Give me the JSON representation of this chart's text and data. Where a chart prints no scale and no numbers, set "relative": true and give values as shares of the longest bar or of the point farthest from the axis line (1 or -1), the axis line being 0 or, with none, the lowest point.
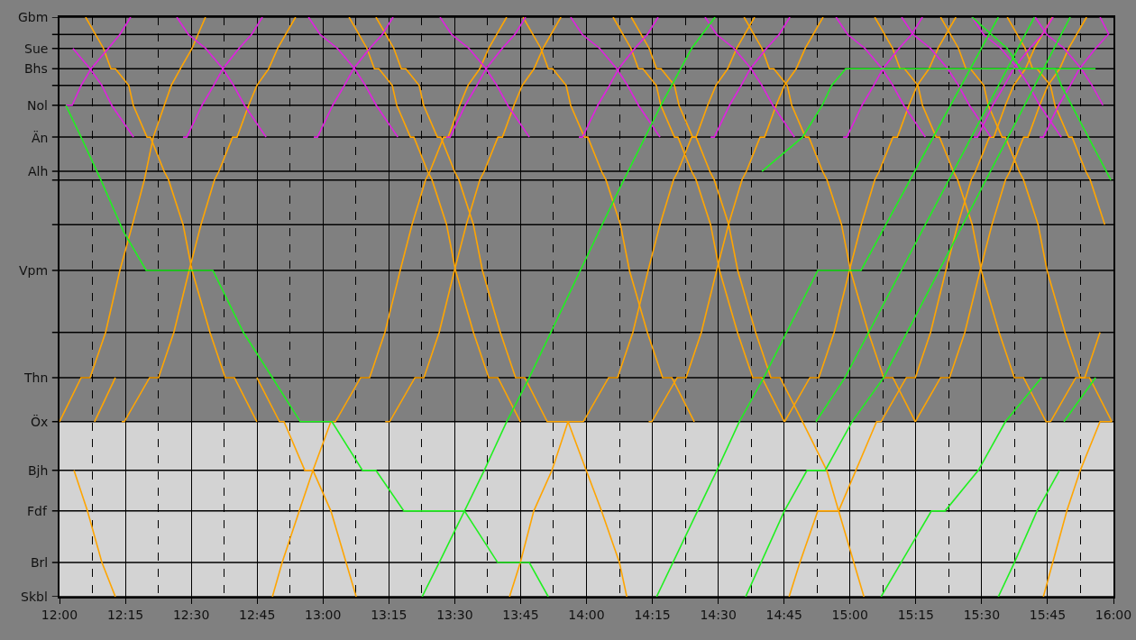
{
  "chart_data": {
    "type": "line",
    "relative": true,
    "xlim": [
      12,
      16
    ],
    "xticks": [
      {
        "value": 12,
        "label": "12:00"
      },
      {
        "value": 12.25,
        "label": "12:15"
      },
      {
        "value": 12.5,
        "label": "12:30"
      },
      {
        "value": 12.75,
        "label": "12:45"
      },
      {
        "value": 13,
        "label": "13:00"
      },
      {
        "value": 13.25,
        "label": "13:15"
      },
      {
        "value": 13.5,
        "label": "13:30"
      },
      {
        "value": 13.75,
        "label": "13:45"
      },
      {
        "value": 14,
        "label": "14:00"
      },
      {
        "value": 14.25,
        "label": "14:15"
      },
      {
        "value": 14.5,
        "label": "14:30"
      },
      {
        "value": 14.75,
        "label": "14:45"
      },
      {
        "value": 15,
        "label": "15:00"
      },
      {
        "value": 15.25,
        "label": "15:15"
      },
      {
        "value": 15.5,
        "label": "15:30"
      },
      {
        "value": 15.75,
        "label": "15:45"
      },
      {
        "value": 16,
        "label": "16:00"
      }
    ],
    "grid": "x",
    "marker": "none",
    "line_style": "solid",
    "ref_lines": [
      {
        "axis": "y",
        "value": 1,
        "label": "Gbm",
        "color": "#000000"
      },
      {
        "axis": "y",
        "value": 0.97,
        "color": "#000000"
      },
      {
        "axis": "y",
        "value": 0.946,
        "label": "Sue",
        "color": "#000000"
      },
      {
        "axis": "y",
        "value": 0.911,
        "label": "Bhs",
        "color": "#000000"
      },
      {
        "axis": "y",
        "value": 0.882,
        "color": "#000000"
      },
      {
        "axis": "y",
        "value": 0.848,
        "label": "Nol",
        "color": "#000000"
      },
      {
        "axis": "y",
        "value": 0.793,
        "label": "Än",
        "color": "#000000"
      },
      {
        "axis": "y",
        "value": 0.734,
        "label": "Alh",
        "color": "#000000"
      },
      {
        "axis": "y",
        "value": 0.719,
        "color": "#000000"
      },
      {
        "axis": "y",
        "value": 0.642,
        "color": "#000000"
      },
      {
        "axis": "y",
        "value": 0.563,
        "label": "Vpm",
        "color": "#000000"
      },
      {
        "axis": "y",
        "value": 0.456,
        "color": "#000000"
      },
      {
        "axis": "y",
        "value": 0.378,
        "label": "Thn",
        "color": "#000000"
      },
      {
        "axis": "y",
        "value": 0.302,
        "label": "Öx",
        "color": "#000000"
      },
      {
        "axis": "y",
        "value": 0.218,
        "label": "Bjh",
        "color": "#000000"
      },
      {
        "axis": "y",
        "value": 0.148,
        "label": "Fdf",
        "color": "#000000"
      },
      {
        "axis": "y",
        "value": 0.059,
        "label": "Brl",
        "color": "#000000"
      },
      {
        "axis": "y",
        "value": 0,
        "label": "Skbl",
        "color": "#000000"
      }
    ],
    "bands": [
      {
        "axis": "y",
        "from": 0,
        "to": 0.302,
        "color": "#d3d3d3"
      }
    ],
    "series": [
      {
        "color": "#ffa500",
        "x": [
          12.0,
          12.082,
          12.116,
          12.175,
          12.229,
          12.277,
          12.322,
          12.356,
          12.424,
          12.459,
          12.503,
          12.554
        ],
        "values": [
          0.302,
          0.378,
          0.378,
          0.456,
          0.563,
          0.642,
          0.719,
          0.793,
          0.882,
          0.911,
          0.946,
          1
        ]
      },
      {
        "color": "#ffa500",
        "x": [
          12.133,
          12.212
        ],
        "values": [
          0.302,
          0.378
        ]
      },
      {
        "color": "#ffa500",
        "x": [
          12.236,
          12.246,
          12.342,
          12.376,
          12.434,
          12.492,
          12.537,
          12.588,
          12.605,
          12.657,
          12.674,
          12.718,
          12.749,
          12.794,
          12.828,
          12.896
        ],
        "values": [
          0.302,
          0.302,
          0.378,
          0.378,
          0.456,
          0.563,
          0.642,
          0.719,
          0.734,
          0.793,
          0.793,
          0.848,
          0.882,
          0.911,
          0.946,
          1
        ]
      },
      {
        "color": "#ffa500",
        "x": [
          12.808,
          12.845,
          12.91,
          12.962,
          13.03,
          13.047,
          13.143,
          13.177,
          13.235,
          13.293,
          13.338,
          13.389,
          13.406,
          13.458,
          13.475,
          13.519,
          13.55,
          13.595,
          13.629,
          13.697
        ],
        "values": [
          0,
          0.059,
          0.148,
          0.218,
          0.302,
          0.302,
          0.378,
          0.378,
          0.456,
          0.563,
          0.642,
          0.719,
          0.734,
          0.793,
          0.793,
          0.848,
          0.882,
          0.911,
          0.946,
          1
        ]
      },
      {
        "color": "#ffa500",
        "x": [
          13.236,
          13.253,
          13.349,
          13.383,
          13.441,
          13.499,
          13.544,
          13.595,
          13.612,
          13.664,
          13.681,
          13.725,
          13.756,
          13.801,
          13.835,
          13.903
        ],
        "values": [
          0.302,
          0.302,
          0.378,
          0.378,
          0.456,
          0.563,
          0.642,
          0.719,
          0.734,
          0.793,
          0.793,
          0.848,
          0.882,
          0.911,
          0.946,
          1
        ]
      },
      {
        "color": "#ffa500",
        "x": [
          13.988,
          14.084,
          14.118,
          14.176,
          14.234,
          14.279,
          14.33,
          14.347,
          14.399,
          14.416,
          14.46,
          14.491,
          14.536,
          14.57,
          14.638
        ],
        "values": [
          0.302,
          0.378,
          0.378,
          0.456,
          0.563,
          0.642,
          0.719,
          0.734,
          0.793,
          0.793,
          0.848,
          0.882,
          0.911,
          0.946,
          1
        ]
      },
      {
        "color": "#ffa500",
        "x": [
          14.236,
          14.248,
          14.344,
          14.378,
          14.436,
          14.494,
          14.539,
          14.59,
          14.607,
          14.659,
          14.676,
          14.72,
          14.751,
          14.796,
          14.83,
          14.898
        ],
        "values": [
          0.302,
          0.302,
          0.378,
          0.378,
          0.456,
          0.563,
          0.642,
          0.719,
          0.734,
          0.793,
          0.793,
          0.848,
          0.882,
          0.911,
          0.946,
          1
        ]
      },
      {
        "color": "#ffa500",
        "x": [
          14.752,
          14.848,
          14.882,
          14.94,
          14.998,
          15.043,
          15.094,
          15.111,
          15.163,
          15.18,
          15.224,
          15.255,
          15.3,
          15.334,
          15.402
        ],
        "values": [
          0.302,
          0.378,
          0.378,
          0.456,
          0.563,
          0.642,
          0.719,
          0.734,
          0.793,
          0.793,
          0.848,
          0.882,
          0.911,
          0.946,
          1
        ]
      },
      {
        "color": "#ffa500",
        "x": [
          14.769,
          14.81,
          14.878,
          14.957,
          15.101,
          15.118,
          15.214,
          15.248,
          15.306,
          15.364,
          15.409,
          15.46,
          15.477,
          15.529,
          15.546,
          15.59,
          15.621,
          15.666,
          15.7,
          15.768
        ],
        "values": [
          0,
          0.059,
          0.148,
          0.148,
          0.302,
          0.302,
          0.378,
          0.378,
          0.456,
          0.563,
          0.642,
          0.719,
          0.734,
          0.793,
          0.793,
          0.848,
          0.882,
          0.911,
          0.946,
          1
        ]
      },
      {
        "color": "#ffa500",
        "x": [
          15.248,
          15.344,
          15.378,
          15.436,
          15.494,
          15.539,
          15.59,
          15.607,
          15.659,
          15.676,
          15.72,
          15.751,
          15.796,
          15.83,
          15.898
        ],
        "values": [
          0.302,
          0.378,
          0.378,
          0.456,
          0.563,
          0.642,
          0.719,
          0.734,
          0.793,
          0.793,
          0.848,
          0.882,
          0.911,
          0.946,
          1
        ]
      },
      {
        "color": "#ffa500",
        "x": [
          15.761,
          15.857,
          15.891,
          15.949
        ],
        "values": [
          0.302,
          0.378,
          0.378,
          0.456
        ]
      },
      {
        "color": "#ffa500",
        "x": [
          12.099,
          12.167,
          12.195,
          12.212,
          12.263,
          12.28,
          12.332,
          12.345,
          12.397,
          12.414,
          12.469,
          12.503,
          12.571,
          12.629,
          12.664,
          12.749
        ],
        "values": [
          1,
          0.946,
          0.911,
          0.911,
          0.882,
          0.848,
          0.793,
          0.793,
          0.734,
          0.719,
          0.642,
          0.563,
          0.456,
          0.378,
          0.378,
          0.302
        ]
      },
      {
        "color": "#ffa500",
        "x": [
          13.099,
          13.167,
          13.195,
          13.212,
          13.263,
          13.28,
          13.332,
          13.345,
          13.397,
          13.414,
          13.469,
          13.503,
          13.571,
          13.629,
          13.664,
          13.749
        ],
        "values": [
          1,
          0.946,
          0.911,
          0.911,
          0.882,
          0.848,
          0.793,
          0.793,
          0.734,
          0.719,
          0.642,
          0.563,
          0.456,
          0.378,
          0.378,
          0.302
        ]
      },
      {
        "color": "#ffa500",
        "x": [
          13.201,
          13.269,
          13.297,
          13.314,
          13.365,
          13.382,
          13.434,
          13.447,
          13.499,
          13.516,
          13.571,
          13.605,
          13.673,
          13.731,
          13.766,
          13.851,
          13.988
        ],
        "values": [
          1,
          0.946,
          0.911,
          0.911,
          0.882,
          0.848,
          0.793,
          0.793,
          0.734,
          0.719,
          0.642,
          0.563,
          0.456,
          0.378,
          0.378,
          0.302,
          0.302
        ]
      },
      {
        "color": "#ffa500",
        "x": [
          13.759,
          13.827,
          13.855,
          13.872,
          13.923,
          13.94,
          13.992,
          14.005,
          14.057,
          14.074,
          14.129,
          14.163,
          14.231,
          14.289,
          14.324,
          14.409
        ],
        "values": [
          1,
          0.946,
          0.911,
          0.911,
          0.882,
          0.848,
          0.793,
          0.793,
          0.734,
          0.719,
          0.642,
          0.563,
          0.456,
          0.378,
          0.378,
          0.302
        ]
      },
      {
        "color": "#ffa500",
        "x": [
          14.101,
          14.169,
          14.197,
          14.214,
          14.265,
          14.282,
          14.334,
          14.347,
          14.399,
          14.416,
          14.471,
          14.505,
          14.573,
          14.631,
          14.666,
          14.751
        ],
        "values": [
          1,
          0.946,
          0.911,
          0.911,
          0.882,
          0.848,
          0.793,
          0.793,
          0.734,
          0.719,
          0.642,
          0.563,
          0.456,
          0.378,
          0.378,
          0.302
        ]
      },
      {
        "color": "#ffa500",
        "x": [
          14.17,
          14.238,
          14.266,
          14.283,
          14.334,
          14.351,
          14.403,
          14.416,
          14.468,
          14.485,
          14.54,
          14.574,
          14.642,
          14.7,
          14.735,
          14.82,
          14.912,
          14.957,
          15.053
        ],
        "values": [
          1,
          0.946,
          0.911,
          0.911,
          0.882,
          0.848,
          0.793,
          0.793,
          0.734,
          0.719,
          0.642,
          0.563,
          0.456,
          0.378,
          0.378,
          0.302,
          0.218,
          0.148,
          0
        ]
      },
      {
        "color": "#ffa500",
        "x": [
          14.598,
          14.666,
          14.694,
          14.711,
          14.762,
          14.779,
          14.831,
          14.844,
          14.896,
          14.913,
          14.968,
          15.002,
          15.07,
          15.128,
          15.163,
          15.248
        ],
        "values": [
          1,
          0.946,
          0.911,
          0.911,
          0.882,
          0.848,
          0.793,
          0.793,
          0.734,
          0.719,
          0.642,
          0.563,
          0.456,
          0.378,
          0.378,
          0.302
        ]
      },
      {
        "color": "#ffa500",
        "x": [
          15.094,
          15.162,
          15.19,
          15.207,
          15.258,
          15.275,
          15.327,
          15.34,
          15.392,
          15.409,
          15.464,
          15.498,
          15.566,
          15.624,
          15.659,
          15.744,
          15.761
        ],
        "values": [
          1,
          0.946,
          0.911,
          0.911,
          0.882,
          0.848,
          0.793,
          0.793,
          0.734,
          0.719,
          0.642,
          0.563,
          0.456,
          0.378,
          0.378,
          0.302,
          0.302
        ]
      },
      {
        "color": "#ffa500",
        "x": [
          15.344,
          15.412,
          15.44,
          15.457,
          15.508,
          15.525,
          15.577,
          15.59,
          15.642,
          15.659,
          15.714,
          15.748,
          15.816,
          15.874,
          15.909,
          15.994
        ],
        "values": [
          1,
          0.946,
          0.911,
          0.911,
          0.882,
          0.848,
          0.793,
          0.793,
          0.734,
          0.719,
          0.642,
          0.563,
          0.456,
          0.378,
          0.378,
          0.302
        ]
      },
      {
        "color": "#ffa500",
        "x": [
          15.597,
          15.665,
          15.693,
          15.71,
          15.761,
          15.778,
          15.83,
          15.843,
          15.895,
          15.912,
          15.967
        ],
        "values": [
          1,
          0.946,
          0.911,
          0.911,
          0.882,
          0.848,
          0.793,
          0.793,
          0.734,
          0.719,
          0.642
        ]
      },
      {
        "color": "#ffa500",
        "x": [
          12.055,
          12.106,
          12.161,
          12.212
        ],
        "values": [
          0.218,
          0.148,
          0.059,
          0
        ]
      },
      {
        "color": "#ffa500",
        "x": [
          12.749,
          12.835,
          12.852,
          12.931,
          12.962,
          13.03,
          13.126
        ],
        "values": [
          0.378,
          0.302,
          0.302,
          0.218,
          0.218,
          0.148,
          0
        ]
      },
      {
        "color": "#ffa500",
        "x": [
          13.708,
          13.749,
          13.8,
          13.869,
          13.93,
          13.999,
          14.057,
          14.125,
          14.153
        ],
        "values": [
          0,
          0.059,
          0.148,
          0.218,
          0.302,
          0.218,
          0.148,
          0.059,
          0
        ]
      },
      {
        "color": "#ffa500",
        "x": [
          15.734,
          15.823,
          15.874,
          15.949,
          15.994
        ],
        "values": [
          0,
          0.148,
          0.218,
          0.302,
          0.302
        ]
      },
      {
        "color": "#e020e0",
        "x": [
          12.051,
          12.116,
          12.161,
          12.198,
          12.281
        ],
        "values": [
          0.946,
          0.911,
          0.882,
          0.848,
          0.793
        ]
      },
      {
        "color": "#e020e0",
        "x": [
          12.445,
          12.489,
          12.555,
          12.62,
          12.661,
          12.702,
          12.784
        ],
        "values": [
          1,
          0.97,
          0.946,
          0.911,
          0.882,
          0.848,
          0.793
        ]
      },
      {
        "color": "#e020e0",
        "x": [
          12.945,
          12.989,
          13.055,
          13.12,
          13.161,
          13.202,
          13.284
        ],
        "values": [
          1,
          0.97,
          0.946,
          0.911,
          0.882,
          0.848,
          0.793
        ]
      },
      {
        "color": "#e020e0",
        "x": [
          13.444,
          13.488,
          13.554,
          13.619,
          13.66,
          13.701,
          13.783
        ],
        "values": [
          1,
          0.97,
          0.946,
          0.911,
          0.882,
          0.848,
          0.793
        ]
      },
      {
        "color": "#e020e0",
        "x": [
          13.94,
          13.984,
          14.05,
          14.115,
          14.156,
          14.197,
          14.279
        ],
        "values": [
          1,
          0.97,
          0.946,
          0.911,
          0.882,
          0.848,
          0.793
        ]
      },
      {
        "color": "#e020e0",
        "x": [
          14.45,
          14.494,
          14.56,
          14.625,
          14.666,
          14.707,
          14.789
        ],
        "values": [
          1,
          0.97,
          0.946,
          0.911,
          0.882,
          0.848,
          0.793
        ]
      },
      {
        "color": "#e020e0",
        "x": [
          14.947,
          14.991,
          15.057,
          15.122,
          15.163,
          15.204,
          15.286
        ],
        "values": [
          1,
          0.97,
          0.946,
          0.911,
          0.882,
          0.848,
          0.793
        ]
      },
      {
        "color": "#e020e0",
        "x": [
          15.196,
          15.24,
          15.306,
          15.371,
          15.412,
          15.453,
          15.535
        ],
        "values": [
          1,
          0.97,
          0.946,
          0.911,
          0.882,
          0.848,
          0.793
        ]
      },
      {
        "color": "#e020e0",
        "x": [
          15.463,
          15.507,
          15.573,
          15.638,
          15.679,
          15.72,
          15.802
        ],
        "values": [
          1,
          0.97,
          0.946,
          0.911,
          0.882,
          0.848,
          0.793
        ]
      },
      {
        "color": "#e020e0",
        "x": [
          15.703,
          15.747,
          15.813,
          15.878,
          15.919,
          15.96
        ],
        "values": [
          1,
          0.97,
          0.946,
          0.911,
          0.882,
          0.848
        ]
      },
      {
        "color": "#e020e0",
        "x": [
          15.949,
          15.983
        ],
        "values": [
          1,
          0.97
        ]
      },
      {
        "color": "#e020e0",
        "x": [
          12.024,
          12.048,
          12.082,
          12.12,
          12.185,
          12.229,
          12.27
        ],
        "values": [
          0.848,
          0.848,
          0.882,
          0.911,
          0.946,
          0.97,
          1
        ]
      },
      {
        "color": "#e020e0",
        "x": [
          12.469,
          12.483,
          12.541,
          12.585,
          12.62,
          12.681,
          12.729,
          12.77
        ],
        "values": [
          0.793,
          0.793,
          0.848,
          0.882,
          0.911,
          0.946,
          0.97,
          1
        ]
      },
      {
        "color": "#e020e0",
        "x": [
          12.965,
          12.979,
          13.037,
          13.081,
          13.116,
          13.177,
          13.225,
          13.266
        ],
        "values": [
          0.793,
          0.793,
          0.848,
          0.882,
          0.911,
          0.946,
          0.97,
          1
        ]
      },
      {
        "color": "#e020e0",
        "x": [
          13.468,
          13.482,
          13.54,
          13.584,
          13.619,
          13.68,
          13.728,
          13.769
        ],
        "values": [
          0.793,
          0.793,
          0.848,
          0.882,
          0.911,
          0.946,
          0.97,
          1
        ]
      },
      {
        "color": "#e020e0",
        "x": [
          13.971,
          13.985,
          14.043,
          14.087,
          14.122,
          14.183,
          14.231,
          14.272
        ],
        "values": [
          0.793,
          0.793,
          0.848,
          0.882,
          0.911,
          0.946,
          0.97,
          1
        ]
      },
      {
        "color": "#e020e0",
        "x": [
          14.471,
          14.485,
          14.543,
          14.587,
          14.622,
          14.683,
          14.731,
          14.772
        ],
        "values": [
          0.793,
          0.793,
          0.848,
          0.882,
          0.911,
          0.946,
          0.97,
          1
        ]
      },
      {
        "color": "#e020e0",
        "x": [
          14.974,
          14.988,
          15.046,
          15.09,
          15.125,
          15.186,
          15.234,
          15.275
        ],
        "values": [
          0.793,
          0.793,
          0.848,
          0.882,
          0.911,
          0.946,
          0.97,
          1
        ]
      },
      {
        "color": "#e020e0",
        "x": [
          15.47,
          15.484,
          15.542,
          15.586,
          15.621,
          15.682,
          15.73,
          15.771
        ],
        "values": [
          0.793,
          0.793,
          0.848,
          0.882,
          0.911,
          0.946,
          0.97,
          1
        ]
      },
      {
        "color": "#e020e0",
        "x": [
          15.72,
          15.734,
          15.792,
          15.836,
          15.871,
          15.932,
          15.98
        ],
        "values": [
          0.793,
          0.793,
          0.848,
          0.882,
          0.911,
          0.946,
          0.97
        ]
      },
      {
        "color": "#20f020",
        "x": [
          12.024,
          12.082,
          12.157,
          12.243,
          12.329,
          12.582,
          12.698,
          12.808,
          12.914,
          13.034,
          13.15,
          13.201,
          13.307,
          13.537,
          13.663,
          13.783,
          13.855
        ],
        "values": [
          0.848,
          0.793,
          0.719,
          0.63,
          0.563,
          0.563,
          0.456,
          0.378,
          0.302,
          0.302,
          0.218,
          0.218,
          0.148,
          0.148,
          0.059,
          0.059,
          0
        ]
      },
      {
        "color": "#20f020",
        "x": [
          13.376,
          13.441,
          13.537,
          13.612,
          13.697,
          13.783,
          14.112,
          14.283,
          14.399,
          14.488
        ],
        "values": [
          0,
          0.059,
          0.148,
          0.218,
          0.302,
          0.378,
          0.692,
          0.848,
          0.946,
          1
        ]
      },
      {
        "color": "#20f020",
        "x": [
          14.266,
          14.495,
          14.58,
          14.673,
          14.878,
          15.042,
          15.563
        ],
        "values": [
          0,
          0.218,
          0.302,
          0.378,
          0.563,
          0.563,
          1
        ]
      },
      {
        "color": "#20f020",
        "x": [
          14.871,
          14.981,
          15.7
        ],
        "values": [
          0.302,
          0.378,
          1
        ]
      },
      {
        "color": "#20f020",
        "x": [
          14.604,
          14.751,
          14.837,
          14.906,
          15.008,
          15.128,
          15.836
        ],
        "values": [
          0,
          0.148,
          0.218,
          0.218,
          0.302,
          0.378,
          1
        ]
      },
      {
        "color": "#20f020",
        "x": [
          15.118,
          15.309,
          15.361,
          15.487,
          15.59,
          15.727
        ],
        "values": [
          0,
          0.148,
          0.148,
          0.218,
          0.302,
          0.378
        ]
      },
      {
        "color": "#20f020",
        "x": [
          15.563,
          15.624,
          15.71,
          15.795
        ],
        "values": [
          0,
          0.059,
          0.148,
          0.218
        ]
      },
      {
        "color": "#20f020",
        "x": [
          15.812,
          15.932
        ],
        "values": [
          0.302,
          0.378
        ]
      },
      {
        "color": "#20f020",
        "x": [
          14.666,
          14.82,
          14.895,
          14.93,
          14.984,
          15.932
        ],
        "values": [
          0.734,
          0.793,
          0.848,
          0.882,
          0.911,
          0.911
        ]
      },
      {
        "color": "#20f020",
        "x": [
          15.463,
          15.597,
          15.648,
          15.778,
          15.802,
          15.99
        ],
        "values": [
          1,
          0.946,
          0.911,
          0.911,
          0.882,
          0.719
        ]
      }
    ]
  }
}
